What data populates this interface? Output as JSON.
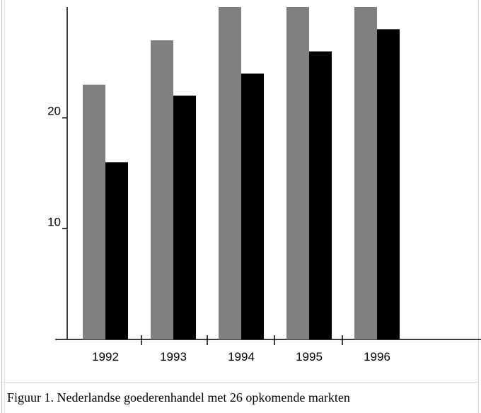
{
  "chart_data": {
    "type": "bar",
    "categories": [
      "1992",
      "1993",
      "1994",
      "1995",
      "1996"
    ],
    "series": [
      {
        "color": "#808080",
        "values": [
          23,
          27,
          30,
          30,
          30
        ]
      },
      {
        "color": "#000000",
        "values": [
          16,
          22,
          24,
          26,
          28
        ]
      }
    ],
    "ylim": [
      0,
      30
    ],
    "yticks": [
      10,
      20
    ],
    "caption": "Figuur 1. Nederlandse goederenhandel met 26 opkomende markten"
  }
}
